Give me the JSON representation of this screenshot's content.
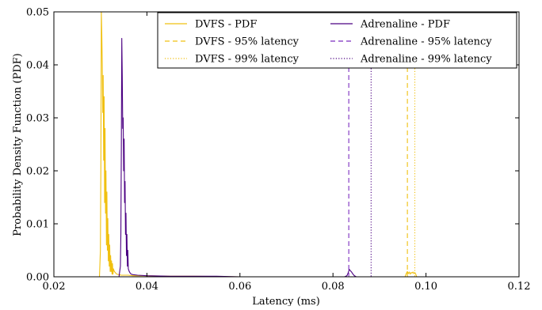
{
  "chart_data": {
    "type": "line",
    "title": "",
    "xlabel": "Latency (ms)",
    "ylabel": "Probability Density Function (PDF)",
    "xlim": [
      0.02,
      0.12
    ],
    "ylim": [
      0.0,
      0.05
    ],
    "x_ticks": [
      "0.02",
      "0.04",
      "0.06",
      "0.08",
      "0.10",
      "0.12"
    ],
    "y_ticks": [
      "0.00",
      "0.01",
      "0.02",
      "0.03",
      "0.04",
      "0.05"
    ],
    "x_tick_values": [
      0.02,
      0.04,
      0.06,
      0.08,
      0.1,
      0.12
    ],
    "y_tick_values": [
      0.0,
      0.01,
      0.02,
      0.03,
      0.04,
      0.05
    ],
    "grid": false,
    "legend_position": "top-right",
    "series": [
      {
        "name": "DVFS - PDF",
        "kind": "pdf",
        "color": "#f0c010",
        "line_style": "solid",
        "x": [
          0.0298,
          0.03,
          0.0301,
          0.0302,
          0.0303,
          0.0304,
          0.0305,
          0.0306,
          0.0307,
          0.0308,
          0.0309,
          0.031,
          0.0311,
          0.0312,
          0.0313,
          0.0314,
          0.0315,
          0.0316,
          0.0317,
          0.0318,
          0.0319,
          0.032,
          0.0321,
          0.0322,
          0.0323,
          0.0324,
          0.0325,
          0.0326,
          0.0327,
          0.0328,
          0.033,
          0.0335,
          0.034,
          0.0345,
          0.035,
          0.036,
          0.037,
          0.038,
          0.04,
          0.045,
          0.05,
          0.06,
          0.07,
          0.08,
          0.09,
          0.095,
          0.0955,
          0.0958,
          0.096,
          0.0962,
          0.0964,
          0.0966,
          0.0968,
          0.097,
          0.0972,
          0.0974,
          0.0976,
          0.0978,
          0.098,
          0.1,
          0.11,
          0.12
        ],
        "values": [
          0.0,
          0.005,
          0.021,
          0.05,
          0.046,
          0.04,
          0.031,
          0.038,
          0.022,
          0.034,
          0.014,
          0.028,
          0.012,
          0.02,
          0.006,
          0.016,
          0.005,
          0.011,
          0.003,
          0.008,
          0.002,
          0.006,
          0.001,
          0.004,
          0.001,
          0.003,
          0.0005,
          0.0025,
          0.0005,
          0.0015,
          0.001,
          0.0005,
          0.0004,
          0.0003,
          0.0003,
          0.0003,
          0.0002,
          0.0002,
          0.0002,
          0.0001,
          0.0001,
          0.0,
          0.0,
          0.0,
          0.0,
          0.0,
          0.0,
          0.0007,
          0.001,
          0.0006,
          0.0009,
          0.0005,
          0.0008,
          0.0007,
          0.0009,
          0.0006,
          0.0008,
          0.0005,
          0.0,
          0.0,
          0.0,
          0.0
        ]
      },
      {
        "name": "DVFS - 95% latency",
        "kind": "vline",
        "color": "#f0c010",
        "line_style": "dashed",
        "x_value": 0.096
      },
      {
        "name": "DVFS - 99% latency",
        "kind": "vline",
        "color": "#f0c010",
        "line_style": "dotted",
        "x_value": 0.0976
      },
      {
        "name": "Adrenaline - PDF",
        "kind": "pdf",
        "color": "#4b0082",
        "line_style": "solid",
        "x": [
          0.034,
          0.0343,
          0.0344,
          0.0345,
          0.0346,
          0.0347,
          0.0348,
          0.0349,
          0.035,
          0.0351,
          0.0352,
          0.0353,
          0.0354,
          0.0355,
          0.0356,
          0.0357,
          0.0358,
          0.0359,
          0.036,
          0.0362,
          0.0364,
          0.0366,
          0.037,
          0.038,
          0.04,
          0.045,
          0.05,
          0.055,
          0.06,
          0.07,
          0.08,
          0.0825,
          0.083,
          0.0833,
          0.0835,
          0.0837,
          0.084,
          0.0843,
          0.0846,
          0.085,
          0.09,
          0.1,
          0.11,
          0.12
        ],
        "values": [
          0.0,
          0.002,
          0.008,
          0.024,
          0.045,
          0.038,
          0.028,
          0.03,
          0.02,
          0.026,
          0.014,
          0.018,
          0.008,
          0.012,
          0.004,
          0.008,
          0.002,
          0.005,
          0.0015,
          0.001,
          0.0007,
          0.0005,
          0.0004,
          0.0003,
          0.0002,
          0.0001,
          0.0001,
          0.0001,
          0.0,
          0.0,
          0.0,
          0.0,
          0.0002,
          0.0008,
          0.0014,
          0.0012,
          0.0009,
          0.0005,
          0.0002,
          0.0,
          0.0,
          0.0,
          0.0,
          0.0
        ]
      },
      {
        "name": "Adrenaline - 95% latency",
        "kind": "vline",
        "color": "#7b2cbf",
        "line_style": "dashed",
        "x_value": 0.0834
      },
      {
        "name": "Adrenaline - 99% latency",
        "kind": "vline",
        "color": "#4b0082",
        "line_style": "dotted",
        "x_value": 0.0882
      }
    ],
    "legend": {
      "columns": [
        [
          "DVFS - PDF",
          "DVFS - 95% latency",
          "DVFS - 99% latency"
        ],
        [
          "Adrenaline - PDF",
          "Adrenaline - 95% latency",
          "Adrenaline - 99% latency"
        ]
      ]
    }
  }
}
